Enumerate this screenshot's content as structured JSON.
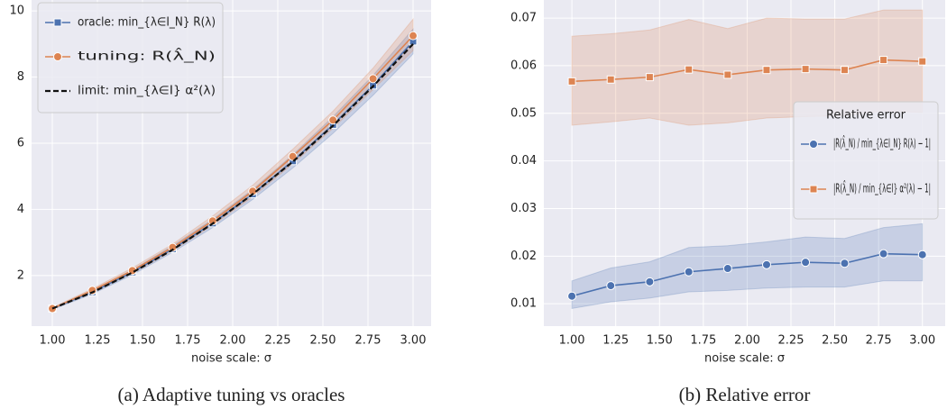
{
  "chart_data": [
    {
      "type": "line",
      "xlabel": "noise scale: σ",
      "caption": "(a) Adaptive tuning vs oracles",
      "x": [
        1.0,
        1.222,
        1.444,
        1.667,
        1.889,
        2.111,
        2.333,
        2.556,
        2.778,
        3.0
      ],
      "xlim": [
        0.885,
        3.1
      ],
      "xticks": [
        {
          "value": 1,
          "label": "1.00"
        },
        {
          "value": 1.25,
          "label": "1.25"
        },
        {
          "value": 1.5,
          "label": "1.50"
        },
        {
          "value": 1.75,
          "label": "1.75"
        },
        {
          "value": 2,
          "label": "2.00"
        },
        {
          "value": 2.25,
          "label": "2.25"
        },
        {
          "value": 2.5,
          "label": "2.50"
        },
        {
          "value": 2.75,
          "label": "2.75"
        },
        {
          "value": 3,
          "label": "3.00"
        }
      ],
      "ylim": [
        0.47,
        10.33
      ],
      "yticks": [
        2,
        4,
        6,
        8,
        10
      ],
      "grid": true,
      "legend": "upper left",
      "series": [
        {
          "name": "oracle: min_{λ∈I_N} R(λ)",
          "color": "#4c72b0",
          "marker": "square",
          "values": [
            1.0,
            1.5,
            2.1,
            2.8,
            3.58,
            4.46,
            5.46,
            6.56,
            7.75,
            9.08
          ],
          "lower": [
            0.97,
            1.44,
            2.02,
            2.7,
            3.45,
            4.3,
            5.25,
            6.3,
            7.45,
            8.7
          ],
          "upper": [
            1.02,
            1.55,
            2.17,
            2.9,
            3.7,
            4.6,
            5.65,
            6.8,
            8.05,
            9.45
          ]
        },
        {
          "name": "tuning: R(λ̂_N)",
          "color": "#dd8452",
          "marker": "circle",
          "values": [
            1.0,
            1.55,
            2.15,
            2.85,
            3.65,
            4.55,
            5.6,
            6.7,
            7.95,
            9.25
          ],
          "lower": [
            0.98,
            1.5,
            2.07,
            2.75,
            3.52,
            4.38,
            5.38,
            6.45,
            7.62,
            8.8
          ],
          "upper": [
            1.03,
            1.6,
            2.23,
            2.95,
            3.8,
            4.73,
            5.82,
            6.97,
            8.27,
            9.75
          ]
        },
        {
          "name": "limit: min_{λ∈I} α²(λ)",
          "color": "#111111",
          "dash": true,
          "values": [
            1.0,
            1.49,
            2.09,
            2.78,
            3.57,
            4.46,
            5.44,
            6.53,
            7.72,
            9.0
          ]
        }
      ]
    },
    {
      "type": "line",
      "xlabel": "noise scale: σ",
      "caption": "(b) Relative error",
      "x": [
        1.0,
        1.222,
        1.444,
        1.667,
        1.889,
        2.111,
        2.333,
        2.556,
        2.778,
        3.0
      ],
      "xlim": [
        0.84,
        3.13
      ],
      "xticks": [
        {
          "value": 1,
          "label": "1.00"
        },
        {
          "value": 1.25,
          "label": "1.25"
        },
        {
          "value": 1.5,
          "label": "1.50"
        },
        {
          "value": 1.75,
          "label": "1.75"
        },
        {
          "value": 2,
          "label": "2.00"
        },
        {
          "value": 2.25,
          "label": "2.25"
        },
        {
          "value": 2.5,
          "label": "2.50"
        },
        {
          "value": 2.75,
          "label": "2.75"
        },
        {
          "value": 3,
          "label": "3.00"
        }
      ],
      "ylim": [
        0.0053,
        0.0738
      ],
      "yticks": [
        0.01,
        0.02,
        0.03,
        0.04,
        0.05,
        0.06,
        0.07
      ],
      "grid": true,
      "legend": "center right",
      "legend_title": "Relative error",
      "series": [
        {
          "name": "|R(λ̂_N) / min_{λ∈I_N} R(λ) − 1|",
          "color": "#4c72b0",
          "marker": "circle",
          "values": [
            0.0116,
            0.0138,
            0.0146,
            0.0167,
            0.0174,
            0.0182,
            0.0187,
            0.0185,
            0.0205,
            0.0203
          ],
          "lower": [
            0.009,
            0.0104,
            0.0112,
            0.0125,
            0.0128,
            0.0133,
            0.0135,
            0.0135,
            0.0148,
            0.0148
          ],
          "upper": [
            0.0148,
            0.0175,
            0.0188,
            0.0218,
            0.0222,
            0.023,
            0.024,
            0.0237,
            0.026,
            0.0268
          ]
        },
        {
          "name": "|R(λ̂_N) / min_{λ∈I} α²(λ) − 1|",
          "color": "#dd8452",
          "marker": "square",
          "values": [
            0.0567,
            0.0571,
            0.0576,
            0.0592,
            0.0581,
            0.0591,
            0.0593,
            0.0591,
            0.0612,
            0.0609
          ],
          "lower": [
            0.0475,
            0.0482,
            0.049,
            0.0475,
            0.048,
            0.049,
            0.0493,
            0.0495,
            0.0505,
            0.0502
          ],
          "upper": [
            0.0662,
            0.0667,
            0.0675,
            0.0697,
            0.0678,
            0.07,
            0.0698,
            0.0698,
            0.0717,
            0.0717
          ]
        }
      ]
    }
  ]
}
